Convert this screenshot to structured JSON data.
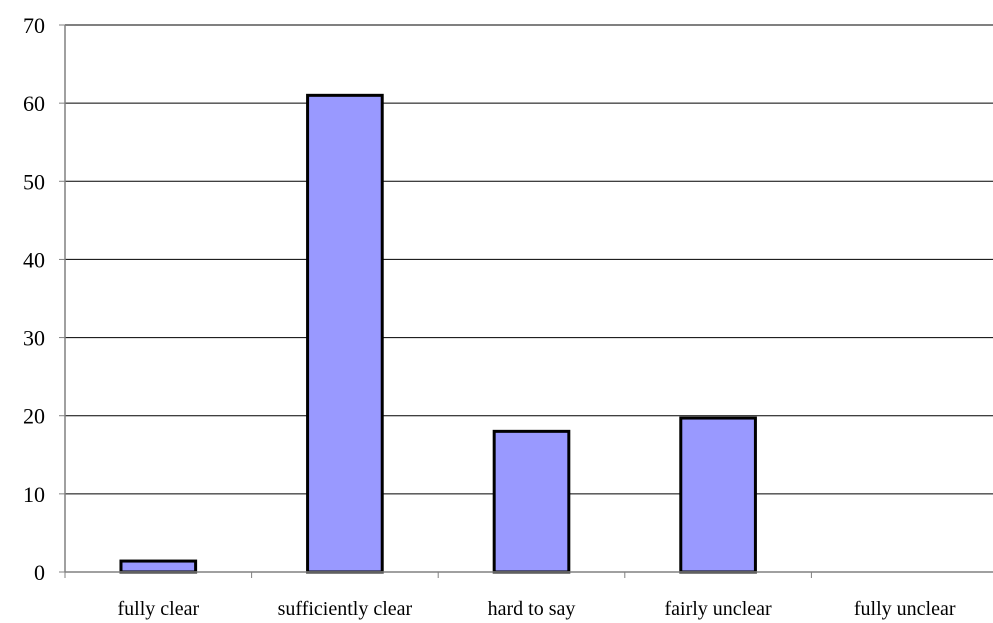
{
  "chart_data": {
    "type": "bar",
    "title": "",
    "xlabel": "",
    "ylabel": "",
    "categories": [
      "fully clear",
      "sufficiently clear",
      "hard to say",
      "fairly unclear",
      "fully unclear"
    ],
    "values": [
      1.4,
      61,
      18,
      19.7,
      0
    ],
    "ylim": [
      0,
      70
    ],
    "yticks": [
      "0",
      "10",
      "20",
      "30",
      "40",
      "50",
      "60",
      "70"
    ],
    "grid": true,
    "legend": "none",
    "colors": {
      "bar_fill": "#9999ff",
      "bar_stroke": "#000000",
      "grid": "#000000",
      "axis": "#808080"
    }
  }
}
